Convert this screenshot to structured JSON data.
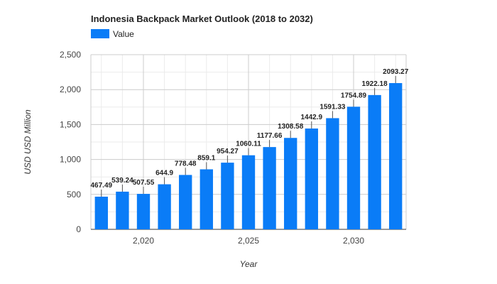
{
  "chart_data": {
    "type": "bar",
    "title": "Indonesia Backpack Market Outlook (2018 to 2032)",
    "xlabel": "Year",
    "ylabel": "USD USD Million",
    "legend": {
      "position": "top-left",
      "entries": [
        "Value"
      ]
    },
    "grid": true,
    "x": [
      2018,
      2019,
      2020,
      2021,
      2022,
      2023,
      2024,
      2025,
      2026,
      2027,
      2028,
      2029,
      2030,
      2031,
      2032
    ],
    "series": [
      {
        "name": "Value",
        "color": "#0a7cf7",
        "values": [
          467.49,
          539.24,
          507.55,
          644.9,
          778.48,
          859.1,
          954.27,
          1060.11,
          1177.66,
          1308.58,
          1442.9,
          1591.33,
          1754.89,
          1922.18,
          2093.27
        ],
        "labels": [
          "467.49",
          "539.24",
          "507.55",
          "644.9",
          "778.48",
          "859.1",
          "954.27",
          "1060.11",
          "1177.66",
          "1308.58",
          "1442.9",
          "1591.33",
          "1754.89",
          "1922.18",
          "2093.27"
        ]
      }
    ],
    "xlim": [
      2017.5,
      2032.5
    ],
    "ylim": [
      0,
      2500
    ],
    "yticks": [
      0,
      500,
      1000,
      1500,
      2000,
      2500
    ],
    "ytick_labels": [
      "0",
      "500",
      "1,000",
      "1,500",
      "2,000",
      "2,500"
    ],
    "xticks": [
      2020,
      2025,
      2030
    ],
    "xtick_labels": [
      "2,020",
      "2,025",
      "2,030"
    ]
  }
}
